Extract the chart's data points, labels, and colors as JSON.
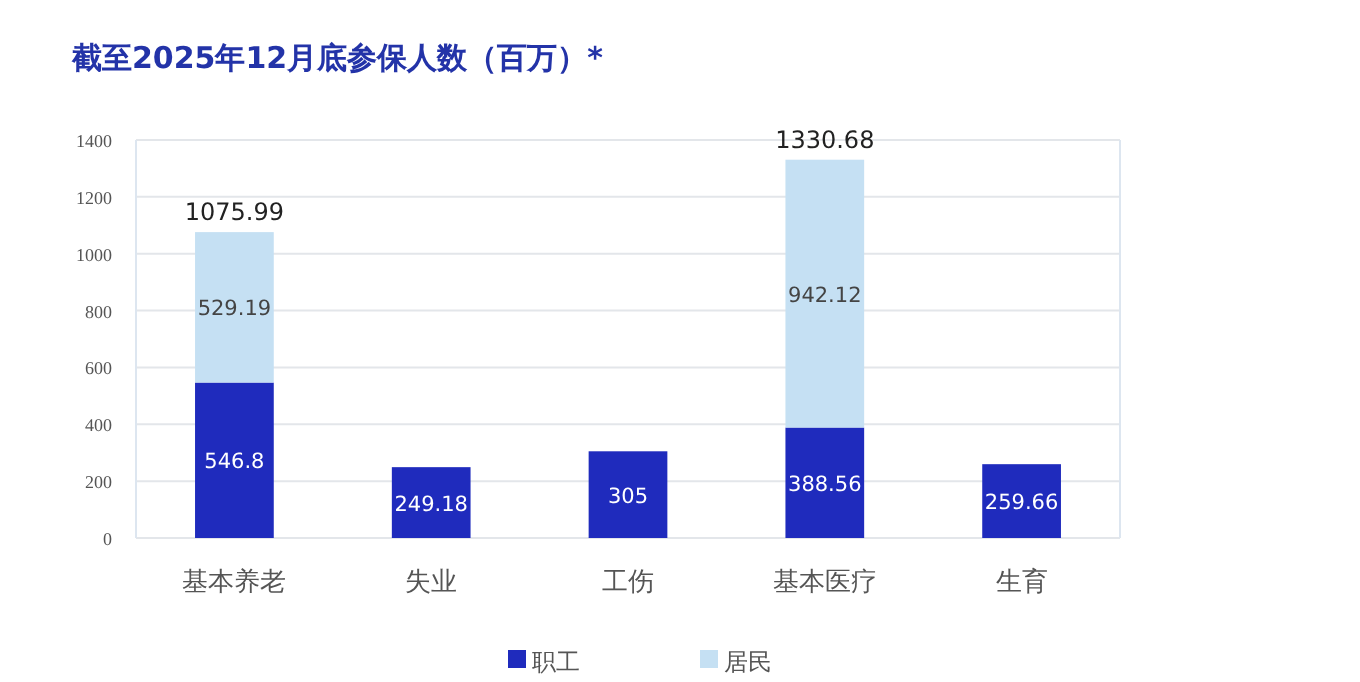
{
  "chart_data": {
    "type": "bar",
    "title": "截至2025年12月底参保人数（百万）*",
    "categories": [
      "基本养老",
      "失业",
      "工伤",
      "基本医疗",
      "生育"
    ],
    "stacked": true,
    "series": [
      {
        "name": "职工",
        "color": "#1f2bbd",
        "values": [
          546.8,
          249.18,
          305,
          388.56,
          259.66
        ]
      },
      {
        "name": "居民",
        "color": "#c5e0f3",
        "values": [
          529.19,
          null,
          null,
          942.12,
          null
        ]
      }
    ],
    "ylim": [
      0,
      1400
    ],
    "yticks": [
      0,
      200,
      400,
      600,
      800,
      1000,
      1200,
      1400
    ],
    "grid": "y",
    "legend": "bottom",
    "data_labels": true,
    "totals": [
      "1075.99",
      null,
      null,
      "1330.68",
      null
    ]
  }
}
